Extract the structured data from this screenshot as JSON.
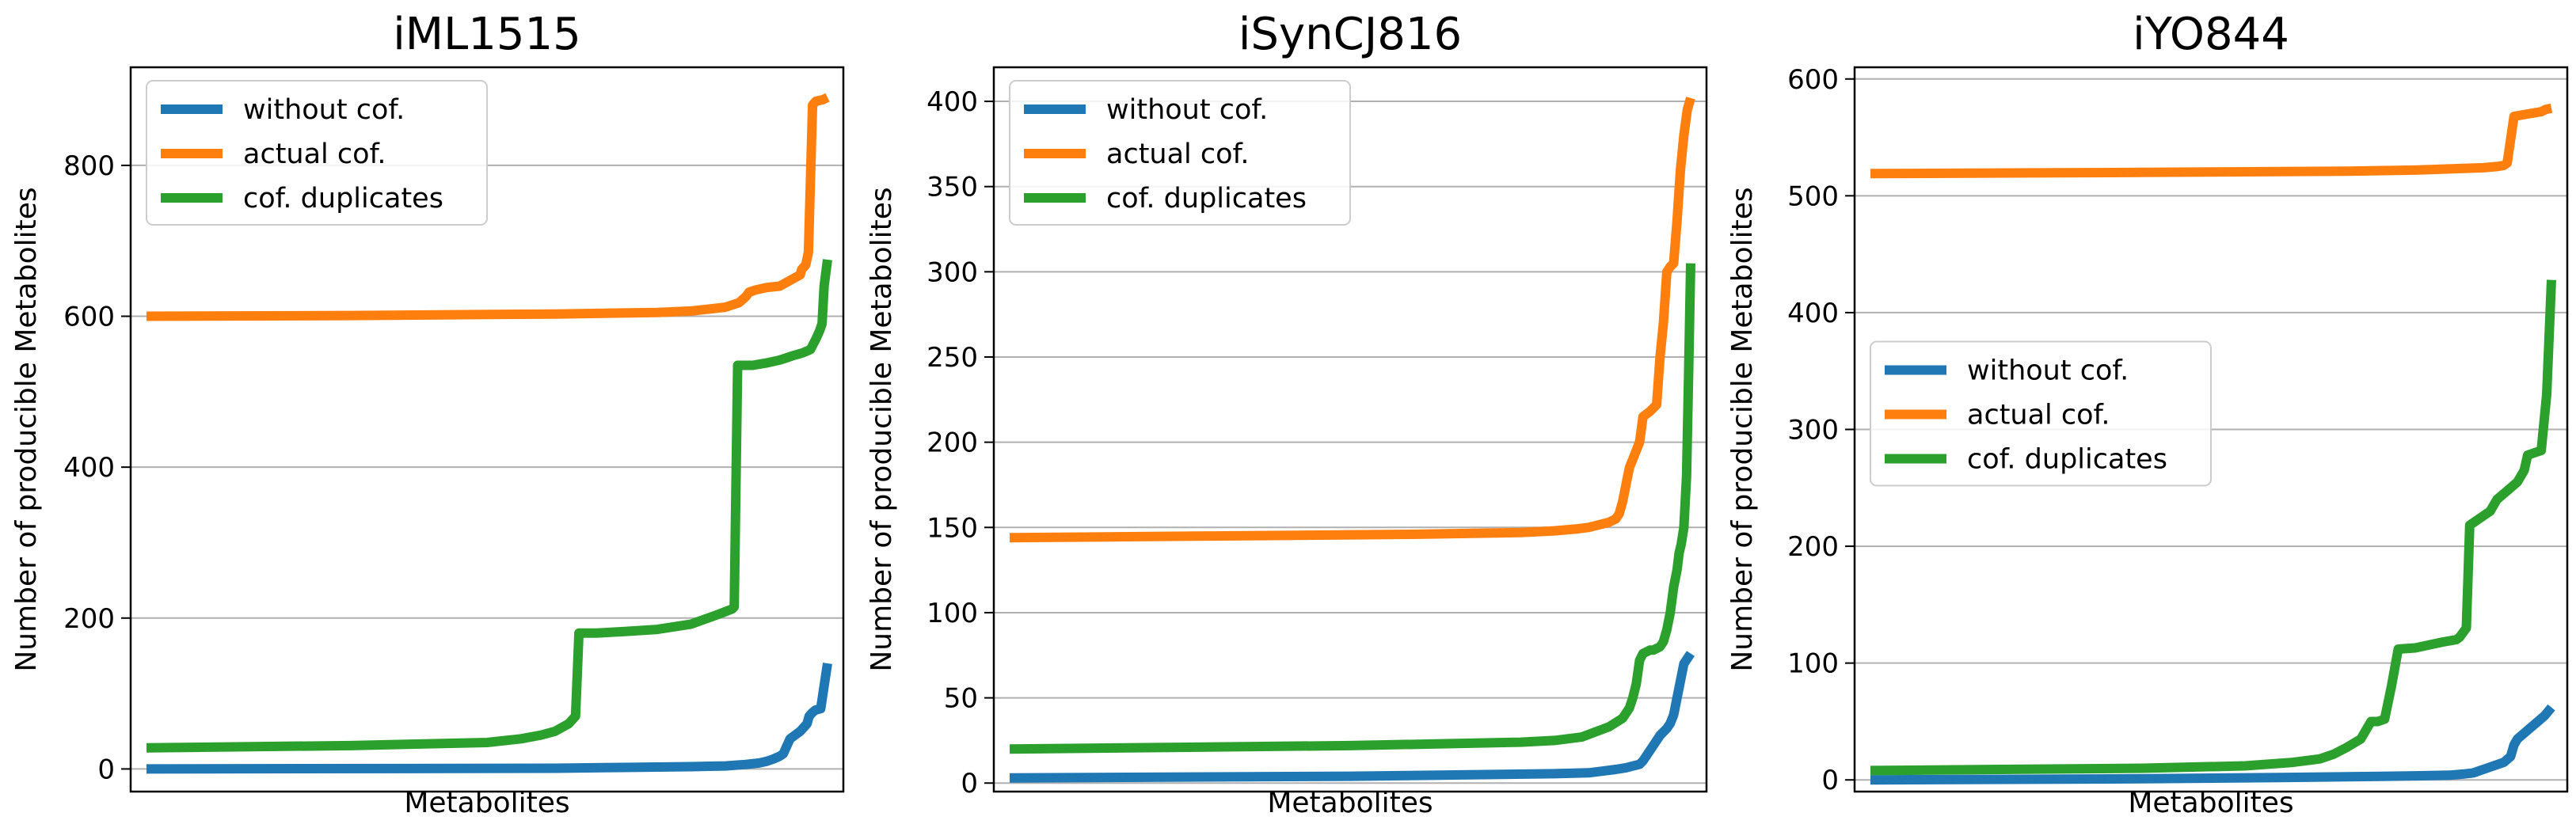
{
  "chart_data": [
    {
      "type": "line",
      "title": "iML1515",
      "xlabel": "Metabolites",
      "ylabel": "Number of producible Metabolites",
      "ylim": [
        -30,
        930
      ],
      "yticks": [
        0,
        200,
        400,
        600,
        800
      ],
      "grid": "y",
      "legend_position": "upper-left",
      "series": [
        {
          "name": "without cof.",
          "color": "#1f77b4",
          "x": [
            0,
            60,
            70,
            80,
            85,
            88,
            90,
            91,
            92,
            93,
            93.5,
            94.5,
            96,
            97,
            97.3,
            97.7,
            98.2,
            99,
            100
          ],
          "values": [
            0,
            1,
            2,
            3,
            4,
            6,
            8,
            10,
            13,
            17,
            20,
            40,
            50,
            60,
            70,
            74,
            78,
            80,
            140
          ]
        },
        {
          "name": "actual cof.",
          "color": "#ff7f0e",
          "x": [
            0,
            30,
            60,
            75,
            80,
            85,
            87,
            88,
            88.5,
            89.5,
            90.5,
            91,
            92,
            93,
            94,
            95,
            96,
            96.2,
            96.8,
            97.2,
            97.8,
            98.3,
            99.3,
            100
          ],
          "values": [
            600,
            601,
            603,
            605,
            607,
            612,
            618,
            626,
            632,
            635,
            637,
            638,
            639,
            640,
            645,
            650,
            655,
            662,
            668,
            685,
            880,
            885,
            887,
            890
          ]
        },
        {
          "name": "cof. duplicates",
          "color": "#2ca02c",
          "x": [
            0,
            30,
            50,
            55,
            58,
            60,
            62,
            63,
            63.5,
            64.5,
            66,
            70,
            75,
            80,
            84,
            86,
            86.3,
            86.8,
            89,
            91,
            93,
            94,
            95,
            95.8,
            96.5,
            97.5,
            98.3,
            98.8,
            99.2,
            99.5,
            100
          ],
          "values": [
            28,
            31,
            35,
            40,
            45,
            50,
            60,
            70,
            180,
            180,
            180,
            182,
            185,
            192,
            205,
            212,
            215,
            535,
            535,
            538,
            542,
            545,
            548,
            550,
            552,
            556,
            570,
            580,
            590,
            640,
            675
          ]
        }
      ]
    },
    {
      "type": "line",
      "title": "iSynCJ816",
      "xlabel": "Metabolites",
      "ylabel": "Number of producible Metabolites",
      "ylim": [
        -5,
        420
      ],
      "yticks": [
        0,
        50,
        100,
        150,
        200,
        250,
        300,
        350,
        400
      ],
      "grid": "y",
      "legend_position": "upper-left",
      "series": [
        {
          "name": "without cof.",
          "color": "#1f77b4",
          "x": [
            0,
            50,
            70,
            80,
            85,
            87,
            89,
            90.5,
            91.5,
            92.5,
            93,
            93.5,
            94.5,
            95.5,
            96,
            96.5,
            97,
            97.5,
            98,
            98.5,
            99,
            100
          ],
          "values": [
            3,
            4,
            5,
            5.5,
            6,
            7,
            8,
            9,
            10,
            11,
            13,
            16,
            22,
            28,
            30,
            32,
            35,
            40,
            50,
            60,
            70,
            76
          ]
        },
        {
          "name": "actual cof.",
          "color": "#ff7f0e",
          "x": [
            0,
            30,
            60,
            75,
            80,
            83,
            85,
            87,
            88,
            89,
            89.5,
            90,
            90.5,
            91,
            91.5,
            92,
            92.5,
            93,
            94,
            95,
            95.5,
            96,
            96.5,
            97,
            97.5,
            98,
            98.5,
            99,
            99.5,
            100
          ],
          "values": [
            144,
            145,
            146,
            147,
            148,
            149,
            150,
            152,
            153,
            155,
            158,
            165,
            175,
            185,
            190,
            195,
            200,
            215,
            218,
            222,
            250,
            270,
            300,
            303,
            305,
            330,
            360,
            380,
            395,
            402
          ]
        },
        {
          "name": "cof. duplicates",
          "color": "#2ca02c",
          "x": [
            0,
            50,
            75,
            80,
            84,
            86,
            88,
            90,
            91,
            91.5,
            92,
            92.5,
            93,
            93.5,
            94,
            94.5,
            95,
            95.5,
            96,
            96.5,
            97,
            97.5,
            98,
            98.3,
            98.6,
            99,
            99.4,
            99.7,
            100
          ],
          "values": [
            20,
            22,
            24,
            25,
            27,
            30,
            33,
            38,
            44,
            50,
            58,
            72,
            76,
            77,
            78,
            78,
            79,
            80,
            83,
            90,
            100,
            115,
            125,
            135,
            140,
            150,
            180,
            240,
            305
          ]
        }
      ]
    },
    {
      "type": "line",
      "title": "iYO844",
      "xlabel": "Metabolites",
      "ylabel": "Number of producible Metabolites",
      "ylim": [
        -10,
        610
      ],
      "yticks": [
        0,
        100,
        200,
        300,
        400,
        500,
        600
      ],
      "grid": "y",
      "legend_position": "center-left",
      "series": [
        {
          "name": "without cof.",
          "color": "#1f77b4",
          "x": [
            0,
            40,
            60,
            75,
            80,
            85,
            87,
            88.5,
            89.5,
            90.5,
            91.5,
            93,
            94,
            94.5,
            95,
            96,
            97,
            98,
            99,
            100
          ],
          "values": [
            0,
            1,
            2,
            3,
            3.5,
            4,
            5,
            6,
            8,
            10,
            12,
            15,
            20,
            30,
            35,
            40,
            45,
            50,
            55,
            62
          ]
        },
        {
          "name": "actual cof.",
          "color": "#ff7f0e",
          "x": [
            0,
            40,
            70,
            80,
            85,
            90,
            92,
            93,
            93.5,
            94.5,
            95.5,
            96.5,
            97.5,
            98.5,
            99.2,
            100
          ],
          "values": [
            519,
            520,
            521,
            522,
            523,
            524,
            525,
            526,
            528,
            568,
            569,
            570,
            571,
            572,
            574,
            575
          ]
        },
        {
          "name": "cof. duplicates",
          "color": "#2ca02c",
          "x": [
            0,
            40,
            55,
            62,
            66,
            68,
            70,
            72,
            73,
            73.5,
            74.5,
            75.5,
            76.5,
            77.5,
            80,
            84,
            86,
            86.5,
            87.5,
            88,
            89,
            90,
            91,
            92,
            93,
            94,
            95,
            96,
            96.5,
            97.5,
            98.5,
            99.3,
            100
          ],
          "values": [
            8,
            10,
            12,
            15,
            18,
            22,
            28,
            35,
            45,
            50,
            50,
            52,
            80,
            112,
            113,
            118,
            120,
            122,
            130,
            218,
            222,
            226,
            230,
            240,
            245,
            250,
            255,
            265,
            278,
            280,
            282,
            330,
            428
          ]
        }
      ]
    }
  ]
}
